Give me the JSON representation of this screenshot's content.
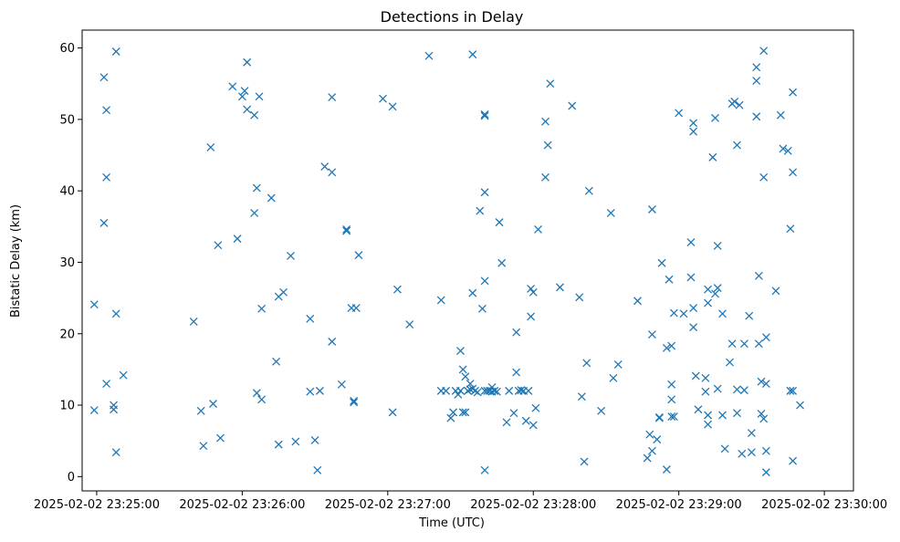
{
  "chart_data": {
    "type": "scatter",
    "title": "Detections in Delay",
    "xlabel": "Time (UTC)",
    "ylabel": "Bistatic Delay (km)",
    "x_unit": "time",
    "xlim": [
      "2025-02-02 23:24:54",
      "2025-02-02 23:30:12"
    ],
    "ylim": [
      -2,
      62.5
    ],
    "x_ticks": [
      "2025-02-02 23:25:00",
      "2025-02-02 23:26:00",
      "2025-02-02 23:27:00",
      "2025-02-02 23:28:00",
      "2025-02-02 23:29:00",
      "2025-02-02 23:30:00"
    ],
    "y_ticks": [
      "0",
      "10",
      "20",
      "30",
      "40",
      "50",
      "60"
    ],
    "grid": false,
    "legend": "none",
    "marker": "x",
    "color": "#1f77b4",
    "series": [
      {
        "points": [
          [
            "23:24:59",
            24.1
          ],
          [
            "23:24:59",
            9.3
          ],
          [
            "23:25:03",
            55.9
          ],
          [
            "23:25:04",
            51.3
          ],
          [
            "23:25:04",
            41.9
          ],
          [
            "23:25:03",
            35.5
          ],
          [
            "23:25:04",
            13.0
          ],
          [
            "23:25:07",
            10.0
          ],
          [
            "23:25:07",
            9.4
          ],
          [
            "23:25:08",
            59.5
          ],
          [
            "23:25:08",
            22.8
          ],
          [
            "23:25:08",
            3.4
          ],
          [
            "23:25:11",
            14.2
          ],
          [
            "23:25:40",
            21.7
          ],
          [
            "23:25:43",
            9.2
          ],
          [
            "23:25:44",
            4.3
          ],
          [
            "23:25:47",
            46.1
          ],
          [
            "23:25:48",
            10.2
          ],
          [
            "23:25:50",
            32.4
          ],
          [
            "23:25:51",
            5.4
          ],
          [
            "23:25:56",
            54.6
          ],
          [
            "23:25:58",
            33.3
          ],
          [
            "23:26:00",
            53.2
          ],
          [
            "23:26:01",
            54.0
          ],
          [
            "23:26:02",
            51.4
          ],
          [
            "23:26:02",
            58.0
          ],
          [
            "23:26:05",
            50.6
          ],
          [
            "23:26:05",
            36.9
          ],
          [
            "23:26:06",
            40.4
          ],
          [
            "23:26:06",
            11.7
          ],
          [
            "23:26:07",
            53.2
          ],
          [
            "23:26:08",
            23.5
          ],
          [
            "23:26:08",
            10.8
          ],
          [
            "23:26:12",
            39.0
          ],
          [
            "23:26:14",
            16.1
          ],
          [
            "23:26:15",
            25.2
          ],
          [
            "23:26:15",
            4.5
          ],
          [
            "23:26:17",
            25.8
          ],
          [
            "23:26:20",
            30.9
          ],
          [
            "23:26:22",
            4.9
          ],
          [
            "23:26:28",
            22.1
          ],
          [
            "23:26:28",
            11.9
          ],
          [
            "23:26:30",
            5.1
          ],
          [
            "23:26:31",
            0.9
          ],
          [
            "23:26:32",
            12.0
          ],
          [
            "23:26:34",
            43.4
          ],
          [
            "23:26:37",
            42.6
          ],
          [
            "23:26:37",
            53.1
          ],
          [
            "23:26:37",
            18.9
          ],
          [
            "23:26:41",
            12.9
          ],
          [
            "23:26:43",
            34.6
          ],
          [
            "23:26:43",
            34.4
          ],
          [
            "23:26:45",
            23.6
          ],
          [
            "23:26:46",
            10.6
          ],
          [
            "23:26:46",
            10.4
          ],
          [
            "23:26:47",
            23.6
          ],
          [
            "23:26:48",
            31.0
          ],
          [
            "23:26:58",
            52.9
          ],
          [
            "23:27:02",
            51.8
          ],
          [
            "23:27:02",
            9.0
          ],
          [
            "23:27:04",
            26.2
          ],
          [
            "23:27:09",
            21.3
          ],
          [
            "23:27:17",
            58.9
          ],
          [
            "23:27:22",
            24.7
          ],
          [
            "23:27:22",
            12.0
          ],
          [
            "23:27:24",
            12.0
          ],
          [
            "23:27:26",
            8.2
          ],
          [
            "23:27:27",
            9.0
          ],
          [
            "23:27:28",
            12.0
          ],
          [
            "23:27:29",
            11.5
          ],
          [
            "23:27:30",
            12.0
          ],
          [
            "23:27:30",
            17.6
          ],
          [
            "23:27:31",
            9.0
          ],
          [
            "23:27:31",
            15.0
          ],
          [
            "23:27:32",
            14.0
          ],
          [
            "23:27:32",
            9.0
          ],
          [
            "23:27:33",
            12.0
          ],
          [
            "23:27:34",
            13.0
          ],
          [
            "23:27:34",
            12.2
          ],
          [
            "23:27:35",
            25.7
          ],
          [
            "23:27:35",
            59.1
          ],
          [
            "23:27:35",
            12.3
          ],
          [
            "23:27:36",
            12.0
          ],
          [
            "23:27:37",
            11.8
          ],
          [
            "23:27:38",
            37.2
          ],
          [
            "23:27:39",
            23.5
          ],
          [
            "23:27:40",
            50.7
          ],
          [
            "23:27:40",
            50.5
          ],
          [
            "23:27:40",
            39.8
          ],
          [
            "23:27:40",
            27.4
          ],
          [
            "23:27:40",
            12.0
          ],
          [
            "23:27:40",
            0.9
          ],
          [
            "23:27:41",
            12.0
          ],
          [
            "23:27:42",
            12.0
          ],
          [
            "23:27:43",
            11.9
          ],
          [
            "23:27:43",
            12.5
          ],
          [
            "23:27:44",
            12.0
          ],
          [
            "23:27:45",
            11.9
          ],
          [
            "23:27:46",
            35.6
          ],
          [
            "23:27:47",
            29.9
          ],
          [
            "23:27:49",
            7.6
          ],
          [
            "23:27:50",
            12.0
          ],
          [
            "23:27:52",
            8.9
          ],
          [
            "23:27:53",
            14.6
          ],
          [
            "23:27:53",
            20.2
          ],
          [
            "23:27:54",
            12.0
          ],
          [
            "23:27:55",
            12.1
          ],
          [
            "23:27:56",
            12.0
          ],
          [
            "23:27:57",
            7.8
          ],
          [
            "23:27:58",
            12.0
          ],
          [
            "23:27:59",
            22.4
          ],
          [
            "23:27:59",
            26.3
          ],
          [
            "23:28:00",
            25.8
          ],
          [
            "23:28:00",
            7.2
          ],
          [
            "23:28:01",
            9.6
          ],
          [
            "23:28:02",
            34.6
          ],
          [
            "23:28:05",
            49.7
          ],
          [
            "23:28:05",
            41.9
          ],
          [
            "23:28:06",
            46.4
          ],
          [
            "23:28:07",
            55.0
          ],
          [
            "23:28:11",
            26.5
          ],
          [
            "23:28:16",
            51.9
          ],
          [
            "23:28:19",
            25.1
          ],
          [
            "23:28:20",
            11.2
          ],
          [
            "23:28:21",
            2.1
          ],
          [
            "23:28:22",
            15.9
          ],
          [
            "23:28:23",
            40.0
          ],
          [
            "23:28:28",
            9.2
          ],
          [
            "23:28:32",
            36.9
          ],
          [
            "23:28:33",
            13.8
          ],
          [
            "23:28:35",
            15.7
          ],
          [
            "23:28:43",
            24.6
          ],
          [
            "23:28:47",
            2.6
          ],
          [
            "23:28:48",
            5.9
          ],
          [
            "23:28:49",
            37.4
          ],
          [
            "23:28:49",
            19.9
          ],
          [
            "23:28:49",
            3.6
          ],
          [
            "23:28:51",
            5.2
          ],
          [
            "23:28:52",
            8.2
          ],
          [
            "23:28:52",
            8.3
          ],
          [
            "23:28:53",
            29.9
          ],
          [
            "23:28:55",
            18.0
          ],
          [
            "23:28:55",
            1.0
          ],
          [
            "23:28:56",
            27.6
          ],
          [
            "23:28:57",
            18.3
          ],
          [
            "23:28:57",
            12.9
          ],
          [
            "23:28:57",
            10.8
          ],
          [
            "23:28:57",
            8.4
          ],
          [
            "23:28:58",
            8.4
          ],
          [
            "23:28:58",
            22.9
          ],
          [
            "23:29:00",
            50.9
          ],
          [
            "23:29:02",
            22.8
          ],
          [
            "23:29:05",
            27.9
          ],
          [
            "23:29:05",
            32.8
          ],
          [
            "23:29:06",
            49.5
          ],
          [
            "23:29:06",
            48.3
          ],
          [
            "23:29:06",
            23.6
          ],
          [
            "23:29:06",
            20.9
          ],
          [
            "23:29:07",
            14.1
          ],
          [
            "23:29:08",
            9.4
          ],
          [
            "23:29:11",
            13.8
          ],
          [
            "23:29:11",
            11.9
          ],
          [
            "23:29:12",
            26.2
          ],
          [
            "23:29:12",
            24.3
          ],
          [
            "23:29:12",
            8.6
          ],
          [
            "23:29:12",
            7.3
          ],
          [
            "23:29:14",
            44.7
          ],
          [
            "23:29:15",
            50.2
          ],
          [
            "23:29:15",
            25.6
          ],
          [
            "23:29:16",
            26.4
          ],
          [
            "23:29:16",
            32.3
          ],
          [
            "23:29:16",
            12.3
          ],
          [
            "23:29:18",
            22.8
          ],
          [
            "23:29:18",
            8.6
          ],
          [
            "23:29:19",
            3.9
          ],
          [
            "23:29:21",
            16.0
          ],
          [
            "23:29:22",
            52.2
          ],
          [
            "23:29:22",
            18.6
          ],
          [
            "23:29:23",
            52.5
          ],
          [
            "23:29:24",
            46.4
          ],
          [
            "23:29:24",
            12.2
          ],
          [
            "23:29:24",
            8.9
          ],
          [
            "23:29:25",
            52.0
          ],
          [
            "23:29:26",
            3.2
          ],
          [
            "23:29:27",
            18.6
          ],
          [
            "23:29:27",
            12.1
          ],
          [
            "23:29:29",
            22.5
          ],
          [
            "23:29:30",
            6.1
          ],
          [
            "23:29:30",
            3.4
          ],
          [
            "23:29:32",
            55.4
          ],
          [
            "23:29:32",
            57.3
          ],
          [
            "23:29:32",
            50.4
          ],
          [
            "23:29:33",
            28.1
          ],
          [
            "23:29:33",
            18.6
          ],
          [
            "23:29:34",
            13.3
          ],
          [
            "23:29:34",
            8.8
          ],
          [
            "23:29:35",
            59.6
          ],
          [
            "23:29:35",
            41.9
          ],
          [
            "23:29:35",
            8.1
          ],
          [
            "23:29:36",
            19.5
          ],
          [
            "23:29:36",
            13.0
          ],
          [
            "23:29:36",
            3.6
          ],
          [
            "23:29:36",
            0.6
          ],
          [
            "23:29:40",
            26.0
          ],
          [
            "23:29:42",
            50.6
          ],
          [
            "23:29:43",
            45.9
          ],
          [
            "23:29:45",
            45.6
          ],
          [
            "23:29:46",
            34.7
          ],
          [
            "23:29:46",
            12.0
          ],
          [
            "23:29:47",
            12.0
          ],
          [
            "23:29:47",
            53.8
          ],
          [
            "23:29:47",
            42.6
          ],
          [
            "23:29:47",
            2.2
          ],
          [
            "23:29:50",
            10.0
          ]
        ]
      }
    ]
  }
}
